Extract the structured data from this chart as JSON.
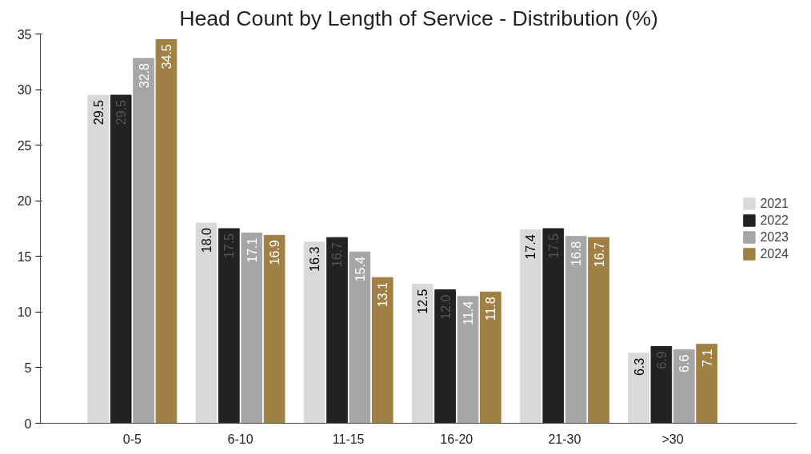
{
  "chart_data": {
    "type": "bar",
    "title": "Head Count by Length of Service - Distribution (%)",
    "categories": [
      "0-5",
      "6-10",
      "11-15",
      "16-20",
      "21-30",
      ">30"
    ],
    "series": [
      {
        "name": "2021",
        "color": "#d9d9d9",
        "values": [
          29.5,
          18.0,
          16.3,
          12.5,
          17.4,
          6.3
        ],
        "value_labels": [
          "29.5",
          "18.0",
          "16.3",
          "12.5",
          "17.4",
          "6.3"
        ]
      },
      {
        "name": "2022",
        "color": "#222222",
        "values": [
          29.5,
          17.5,
          16.7,
          12.0,
          17.5,
          6.9
        ],
        "value_labels": [
          "29.5",
          "17.5",
          "16.7",
          "12.0",
          "17.5",
          "6.9"
        ]
      },
      {
        "name": "2023",
        "color": "#a6a6a6",
        "values": [
          32.8,
          17.1,
          15.4,
          11.4,
          16.8,
          6.6
        ],
        "value_labels": [
          "32.8",
          "17.1",
          "15.4",
          "11.4",
          "16.8",
          "6.6"
        ]
      },
      {
        "name": "2024",
        "color": "#a08045",
        "values": [
          34.5,
          16.9,
          13.1,
          11.8,
          16.7,
          7.1
        ],
        "value_labels": [
          "34.5",
          "16.9",
          "13.1",
          "11.8",
          "16.7",
          "7.1"
        ]
      }
    ],
    "ylim": [
      0,
      35
    ],
    "yticks": [
      0,
      5,
      10,
      15,
      20,
      25,
      30,
      35
    ],
    "grid": false,
    "legend": "right"
  }
}
